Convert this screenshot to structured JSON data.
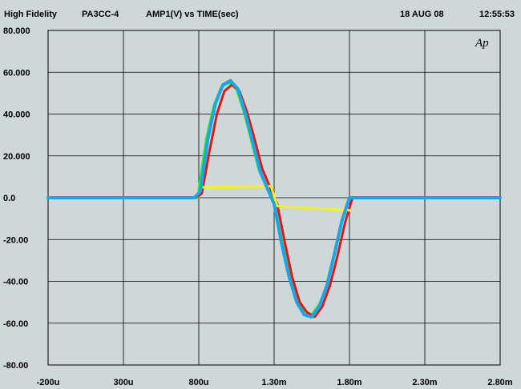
{
  "header": {
    "brand": "High   Fidelity",
    "model": "PA3CC-4",
    "plot_title": "AMP1(V)   vs   TIME(sec)",
    "date": "18   AUG   08",
    "time": "12:55:53"
  },
  "logo_text": "Ap",
  "colors": {
    "background": "#cfd8d8",
    "grid": "#000000",
    "cyan": "#1aa6e6",
    "red": "#e01818",
    "green": "#22ee22",
    "yellow": "#f2f222"
  },
  "chart_data": {
    "type": "line",
    "title": "AMP1(V)   vs   TIME(sec)",
    "xlabel": "",
    "ylabel": "",
    "xlim": [
      -0.0002,
      0.0028
    ],
    "ylim": [
      -80,
      80
    ],
    "grid": true,
    "x_ticks": [
      {
        "value": -0.0002,
        "label": "-200u"
      },
      {
        "value": 0.0003,
        "label": "300u"
      },
      {
        "value": 0.0008,
        "label": "800u"
      },
      {
        "value": 0.0013,
        "label": "1.30m"
      },
      {
        "value": 0.0018,
        "label": "1.80m"
      },
      {
        "value": 0.0023,
        "label": "2.30m"
      },
      {
        "value": 0.0028,
        "label": "2.80m"
      }
    ],
    "y_ticks": [
      {
        "value": 80,
        "label": "80.000"
      },
      {
        "value": 60,
        "label": "60.000"
      },
      {
        "value": 40,
        "label": "40.000"
      },
      {
        "value": 20,
        "label": "20.000"
      },
      {
        "value": 0,
        "label": "0.0"
      },
      {
        "value": -20,
        "label": "-20.00"
      },
      {
        "value": -40,
        "label": "-40.00"
      },
      {
        "value": -60,
        "label": "-60.00"
      },
      {
        "value": -80,
        "label": "-80.00"
      }
    ],
    "series": [
      {
        "color": "green",
        "values": [
          [
            -0.0002,
            0
          ],
          [
            0.00075,
            0
          ],
          [
            0.0008,
            0
          ],
          [
            0.0008,
            4
          ],
          [
            0.00085,
            28
          ],
          [
            0.0009,
            44
          ],
          [
            0.00095,
            53
          ],
          [
            0.001,
            55
          ],
          [
            0.00105,
            52
          ],
          [
            0.0011,
            41
          ],
          [
            0.00115,
            27
          ],
          [
            0.0012,
            13
          ],
          [
            0.0013,
            -2
          ],
          [
            0.00135,
            -20
          ],
          [
            0.0014,
            -36
          ],
          [
            0.00145,
            -49
          ],
          [
            0.0015,
            -54
          ],
          [
            0.00155,
            -56
          ],
          [
            0.0016,
            -51
          ],
          [
            0.00165,
            -42
          ],
          [
            0.0017,
            -27
          ],
          [
            0.00175,
            -11
          ],
          [
            0.0018,
            0
          ],
          [
            0.0028,
            0
          ]
        ]
      },
      {
        "color": "red",
        "values": [
          [
            -0.0002,
            0
          ],
          [
            0.00078,
            0
          ],
          [
            0.00082,
            2
          ],
          [
            0.00087,
            22
          ],
          [
            0.00092,
            40
          ],
          [
            0.00097,
            51
          ],
          [
            0.00102,
            54
          ],
          [
            0.00107,
            51
          ],
          [
            0.00112,
            41
          ],
          [
            0.00117,
            28
          ],
          [
            0.00122,
            14
          ],
          [
            0.00132,
            -3
          ],
          [
            0.00137,
            -21
          ],
          [
            0.00142,
            -38
          ],
          [
            0.00147,
            -50
          ],
          [
            0.00152,
            -55
          ],
          [
            0.00157,
            -57
          ],
          [
            0.00162,
            -52
          ],
          [
            0.00167,
            -42
          ],
          [
            0.00172,
            -28
          ],
          [
            0.00177,
            -12
          ],
          [
            0.00182,
            0
          ],
          [
            0.0028,
            0
          ]
        ]
      },
      {
        "color": "yellow",
        "values": [
          [
            0.00082,
            5
          ],
          [
            0.00128,
            5.5
          ],
          [
            0.00132,
            -4
          ],
          [
            0.0018,
            -6
          ]
        ]
      },
      {
        "color": "cyan",
        "values": [
          [
            -0.0002,
            0
          ],
          [
            0.00077,
            0
          ],
          [
            0.00081,
            3
          ],
          [
            0.00086,
            28
          ],
          [
            0.00091,
            45
          ],
          [
            0.00096,
            54
          ],
          [
            0.00101,
            56
          ],
          [
            0.00106,
            52
          ],
          [
            0.00111,
            40
          ],
          [
            0.00116,
            26
          ],
          [
            0.00121,
            12
          ],
          [
            0.0013,
            -3
          ],
          [
            0.00135,
            -22
          ],
          [
            0.0014,
            -38
          ],
          [
            0.00145,
            -50
          ],
          [
            0.0015,
            -56
          ],
          [
            0.00155,
            -57
          ],
          [
            0.0016,
            -52
          ],
          [
            0.00165,
            -42
          ],
          [
            0.0017,
            -27
          ],
          [
            0.00175,
            -11
          ],
          [
            0.0018,
            0
          ],
          [
            0.0028,
            0
          ]
        ]
      }
    ]
  }
}
